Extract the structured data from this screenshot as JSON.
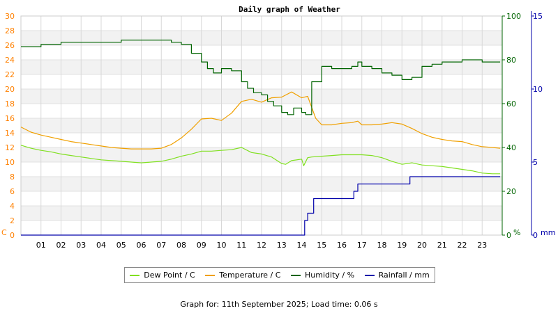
{
  "chart_data": {
    "type": "line",
    "title": "Daily graph of Weather",
    "x_ticks": [
      "01",
      "02",
      "03",
      "04",
      "05",
      "06",
      "07",
      "08",
      "09",
      "10",
      "11",
      "12",
      "13",
      "14",
      "15",
      "16",
      "17",
      "18",
      "19",
      "20",
      "21",
      "22",
      "23"
    ],
    "x_range": [
      0,
      24
    ],
    "axes": {
      "left": {
        "unit": "C",
        "range": [
          0,
          30
        ],
        "ticks": [
          0,
          2,
          4,
          6,
          8,
          10,
          12,
          14,
          16,
          18,
          20,
          22,
          24,
          26,
          28,
          30
        ],
        "color": "#ff8000"
      },
      "right_humidity": {
        "unit": "%",
        "range": [
          0,
          100
        ],
        "ticks": [
          0,
          20,
          40,
          60,
          80,
          100
        ],
        "color": "#006400"
      },
      "right_rain": {
        "unit": "mm",
        "range": [
          0,
          15
        ],
        "ticks": [
          0,
          5,
          10,
          15
        ],
        "color": "#0000aa"
      }
    },
    "series": [
      {
        "name": "Dew Point / C",
        "axis": "left",
        "color": "#80e020",
        "x": [
          0,
          0.5,
          1,
          1.5,
          2,
          2.5,
          3,
          3.5,
          4,
          4.5,
          5,
          5.5,
          6,
          6.5,
          7,
          7.5,
          8,
          8.5,
          9,
          9.5,
          10,
          10.5,
          11,
          11.5,
          12,
          12.5,
          13,
          13.2,
          13.5,
          14,
          14.1,
          14.3,
          14.5,
          15,
          15.5,
          16,
          16.5,
          17,
          17.5,
          18,
          18.5,
          19,
          19.5,
          20,
          20.5,
          21,
          21.5,
          22,
          22.5,
          23,
          23.5,
          23.9
        ],
        "y": [
          12.3,
          11.9,
          11.6,
          11.4,
          11.1,
          10.9,
          10.7,
          10.5,
          10.3,
          10.2,
          10.1,
          10.0,
          9.9,
          10.0,
          10.1,
          10.4,
          10.8,
          11.1,
          11.5,
          11.5,
          11.6,
          11.7,
          12.0,
          11.3,
          11.1,
          10.7,
          9.8,
          9.7,
          10.2,
          10.4,
          9.5,
          10.6,
          10.7,
          10.8,
          10.9,
          11.0,
          11.0,
          11.0,
          10.9,
          10.6,
          10.1,
          9.7,
          9.9,
          9.6,
          9.5,
          9.4,
          9.2,
          9.0,
          8.8,
          8.5,
          8.4,
          8.4
        ]
      },
      {
        "name": "Temperature / C",
        "axis": "left",
        "color": "#f0a000",
        "x": [
          0,
          0.5,
          1,
          1.5,
          2,
          2.5,
          3,
          3.5,
          4,
          4.5,
          5,
          5.5,
          6,
          6.5,
          7,
          7.5,
          8,
          8.5,
          9,
          9.5,
          10,
          10.5,
          11,
          11.5,
          12,
          12.5,
          13,
          13.5,
          14,
          14.3,
          14.7,
          15,
          15.5,
          16,
          16.5,
          16.8,
          17,
          17.5,
          18,
          18.5,
          19,
          19.5,
          20,
          20.5,
          21,
          21.5,
          22,
          22.5,
          23,
          23.5,
          23.9
        ],
        "y": [
          14.8,
          14.1,
          13.7,
          13.4,
          13.1,
          12.8,
          12.6,
          12.4,
          12.2,
          12.0,
          11.9,
          11.8,
          11.8,
          11.8,
          11.9,
          12.4,
          13.3,
          14.5,
          15.9,
          16.0,
          15.7,
          16.7,
          18.3,
          18.6,
          18.2,
          18.8,
          18.9,
          19.6,
          18.8,
          19.0,
          16.0,
          15.1,
          15.1,
          15.3,
          15.4,
          15.6,
          15.1,
          15.1,
          15.2,
          15.4,
          15.2,
          14.6,
          13.9,
          13.4,
          13.1,
          12.9,
          12.8,
          12.4,
          12.1,
          12.0,
          11.9
        ]
      },
      {
        "name": "Humidity / %",
        "axis": "right_humidity",
        "color": "#006400",
        "x": [
          0,
          0.5,
          1,
          1.5,
          2,
          2.5,
          3,
          3.5,
          4,
          4.5,
          5,
          5.5,
          6,
          6.5,
          7,
          7.5,
          8,
          8.5,
          9,
          9.3,
          9.6,
          10,
          10.5,
          11,
          11.3,
          11.6,
          12,
          12.3,
          12.6,
          13,
          13.3,
          13.6,
          14,
          14.2,
          14.5,
          15,
          15.5,
          16,
          16.5,
          16.8,
          17,
          17.5,
          18,
          18.5,
          19,
          19.5,
          20,
          20.5,
          21,
          21.5,
          22,
          22.5,
          23,
          23.5,
          23.9
        ],
        "y": [
          86,
          86,
          87,
          87,
          88,
          88,
          88,
          88,
          88,
          88,
          89,
          89,
          89,
          89,
          89,
          88,
          87,
          83,
          79,
          76,
          74,
          76,
          75,
          70,
          67,
          65,
          64,
          61,
          59,
          56,
          55,
          58,
          56,
          55,
          70,
          77,
          76,
          76,
          77,
          79,
          77,
          76,
          74,
          73,
          71,
          72,
          77,
          78,
          79,
          79,
          80,
          80,
          79,
          79,
          79
        ]
      },
      {
        "name": "Rainfall / mm",
        "axis": "right_rain",
        "color": "#0000aa",
        "x": [
          0,
          14,
          14.15,
          14.3,
          14.6,
          14.9,
          15.5,
          16.6,
          16.8,
          17.0,
          17.4,
          18.0,
          19.4,
          19.5,
          20.5,
          23.9
        ],
        "y": [
          0,
          0,
          1,
          1.5,
          2.5,
          2.5,
          2.5,
          3,
          3.5,
          3.5,
          3.5,
          3.5,
          4,
          4,
          4,
          4
        ]
      }
    ],
    "legend_placement": "bottom",
    "grid": true
  },
  "footer": "Graph for: 11th September 2025; Load time: 0.06 s"
}
